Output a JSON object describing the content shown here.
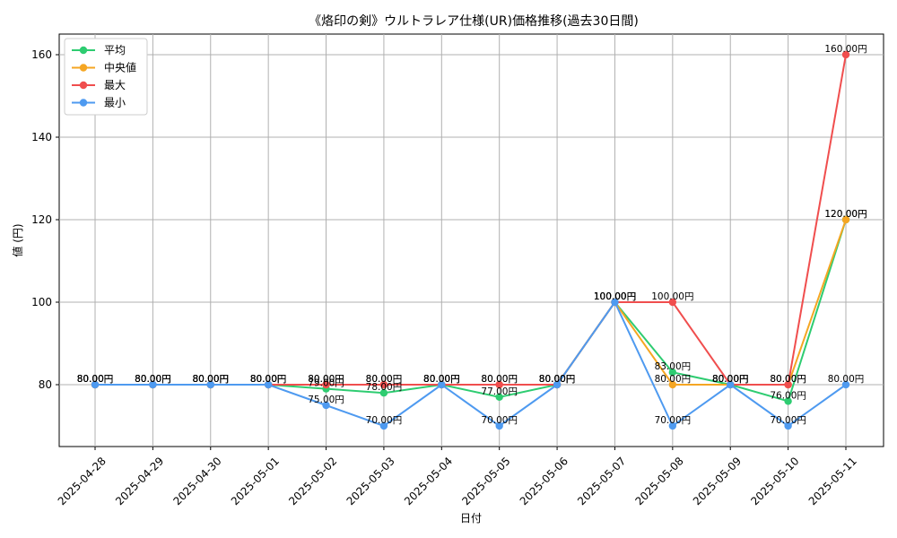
{
  "chart_data": {
    "type": "line",
    "title": "《烙印の剣》ウルトラレア仕様(UR)価格推移(過去30日間)",
    "xlabel": "日付",
    "ylabel": "値 (円)",
    "ylim": [
      65,
      165
    ],
    "yticks": [
      80,
      100,
      120,
      140,
      160
    ],
    "grid": true,
    "legend_position": "top-left",
    "label_suffix": "円",
    "categories": [
      "2025-04-28",
      "2025-04-29",
      "2025-04-30",
      "2025-05-01",
      "2025-05-02",
      "2025-05-03",
      "2025-05-04",
      "2025-05-05",
      "2025-05-06",
      "2025-05-07",
      "2025-05-08",
      "2025-05-09",
      "2025-05-10",
      "2025-05-11"
    ],
    "series": [
      {
        "name": "平均",
        "color": "#2ecc71",
        "values": [
          80,
          80,
          80,
          80,
          79,
          78,
          80,
          77,
          80,
          100,
          83,
          80,
          76,
          120
        ]
      },
      {
        "name": "中央値",
        "color": "#f5a623",
        "values": [
          80,
          80,
          80,
          80,
          80,
          80,
          80,
          80,
          80,
          100,
          80,
          80,
          80,
          120
        ]
      },
      {
        "name": "最大",
        "color": "#f04e4e",
        "values": [
          80,
          80,
          80,
          80,
          80,
          80,
          80,
          80,
          80,
          100,
          100,
          80,
          80,
          160
        ]
      },
      {
        "name": "最小",
        "color": "#4e9af0",
        "values": [
          80,
          80,
          80,
          80,
          75,
          70,
          80,
          70,
          80,
          100,
          70,
          80,
          70,
          80
        ]
      }
    ]
  }
}
